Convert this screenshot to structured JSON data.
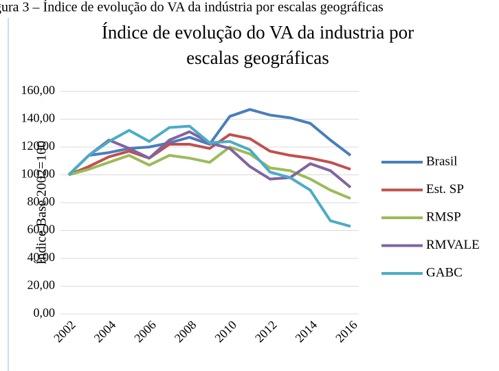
{
  "caption": "gura 3 – Índice de evolução do VA da indústria por escalas geográficas",
  "chart_data": {
    "type": "line",
    "title": [
      "Índice de evolução do VA da industria por",
      "escalas geográficas"
    ],
    "y_label": "Índice Base 2002=100",
    "categories": [
      "2002",
      "2003",
      "2004",
      "2005",
      "2006",
      "2007",
      "2008",
      "2009",
      "2010",
      "2011",
      "2012",
      "2013",
      "2014",
      "2015",
      "2016"
    ],
    "xticks_shown": [
      0,
      2,
      4,
      6,
      8,
      10,
      12,
      14
    ],
    "ylim": [
      0,
      160
    ],
    "yticks": [
      {
        "value": 0,
        "label": "0,00"
      },
      {
        "value": 20,
        "label": "20,00"
      },
      {
        "value": 40,
        "label": "40,00"
      },
      {
        "value": 60,
        "label": "60,00"
      },
      {
        "value": 80,
        "label": "80,00"
      },
      {
        "value": 100,
        "label": "100,00"
      },
      {
        "value": 120,
        "label": "120,00"
      },
      {
        "value": 140,
        "label": "140,00"
      },
      {
        "value": 160,
        "label": "160,00"
      }
    ],
    "grid": true,
    "legend": "right",
    "series": [
      {
        "name": "Brasil",
        "color": "#4a7ebb",
        "values": [
          100,
          114,
          116,
          119,
          120,
          123,
          127,
          122,
          142,
          147,
          143,
          141,
          137,
          125,
          114
        ]
      },
      {
        "name": "Est. SP",
        "color": "#c0504d",
        "values": [
          100,
          106,
          113,
          117,
          112,
          122,
          122,
          119,
          129,
          126,
          117,
          114,
          112,
          109,
          104
        ]
      },
      {
        "name": "RMSP",
        "color": "#9bbb59",
        "values": [
          100,
          104,
          109,
          114,
          107,
          114,
          112,
          109,
          120,
          115,
          105,
          103,
          97,
          89,
          83
        ]
      },
      {
        "name": "RMVALE",
        "color": "#8064a2",
        "values": [
          100,
          114,
          125,
          119,
          112,
          125,
          131,
          123,
          119,
          106,
          97,
          98,
          108,
          103,
          91
        ]
      },
      {
        "name": "GABC",
        "color": "#4bacc6",
        "values": [
          100,
          114,
          124,
          132,
          124,
          134,
          135,
          123,
          124,
          118,
          102,
          98,
          89,
          67,
          63
        ]
      }
    ]
  }
}
